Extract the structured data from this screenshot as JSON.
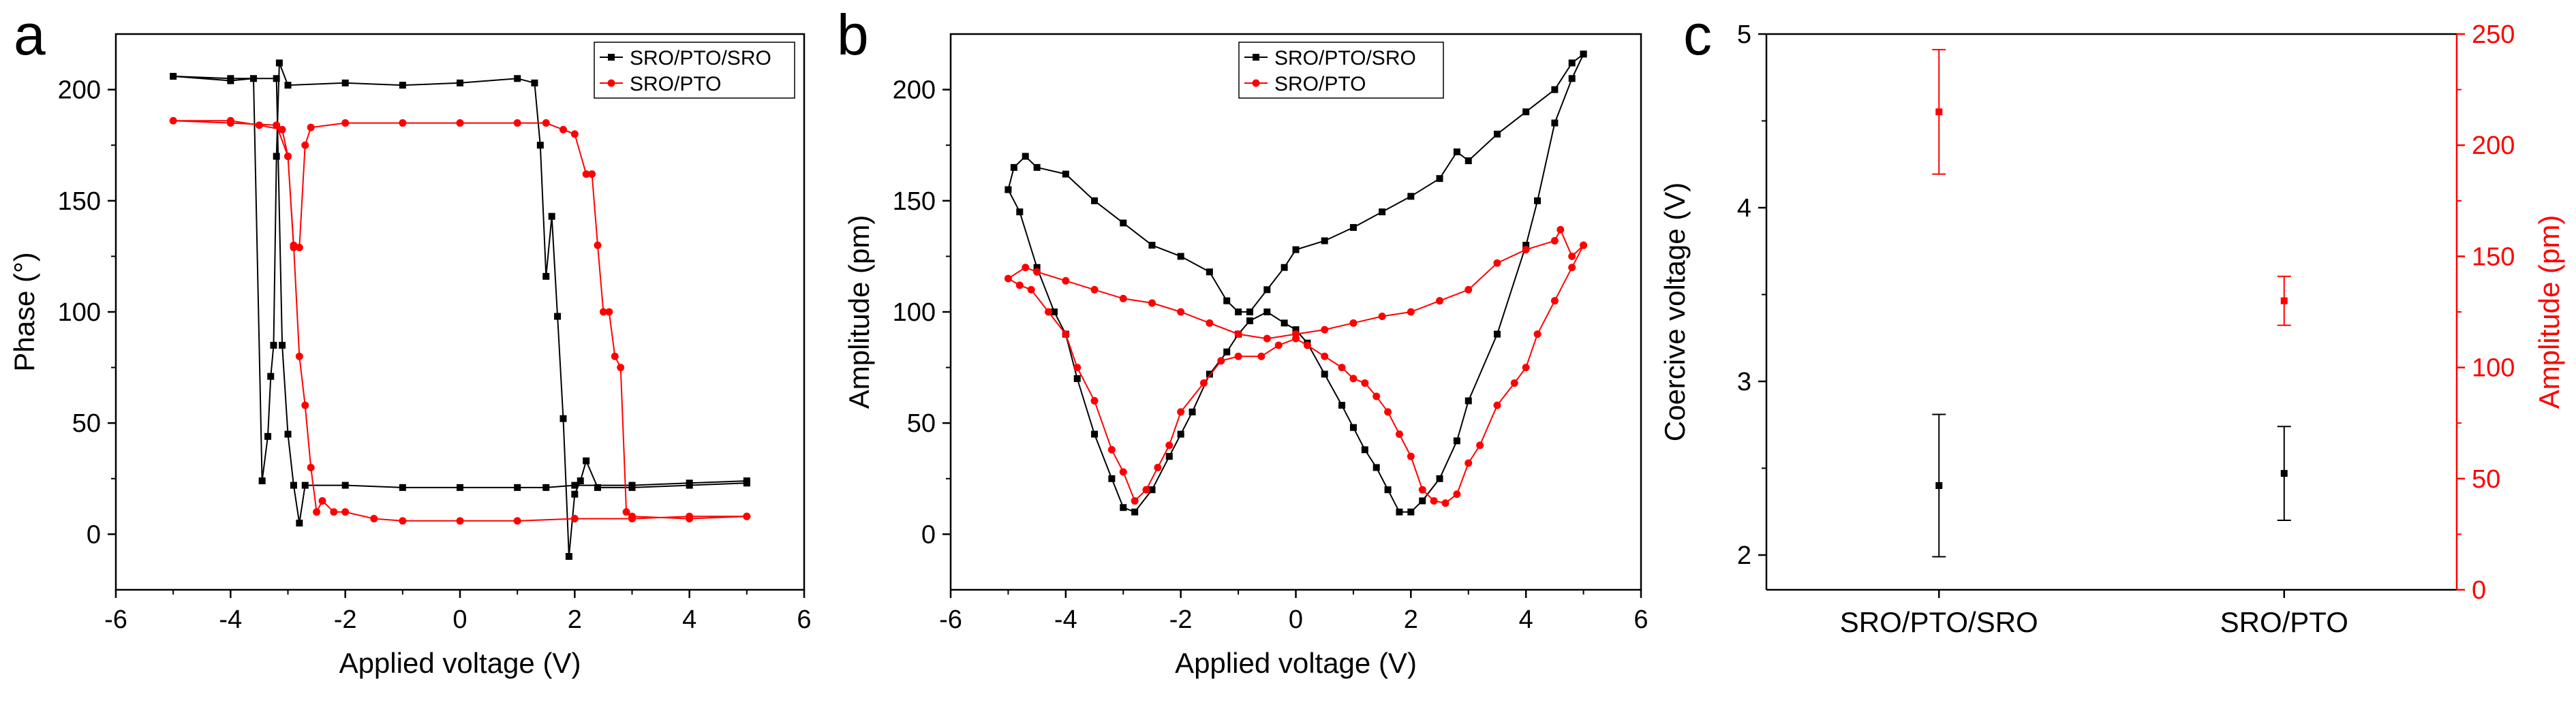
{
  "panel_labels": [
    "a",
    "b",
    "c"
  ],
  "colors": {
    "black_series": "#000000",
    "red_series": "#ff0000"
  },
  "chart_data": [
    {
      "type": "line",
      "panel": "a",
      "title": "",
      "xlabel": "Applied voltage (V)",
      "ylabel": "Phase (°)",
      "xlim": [
        -6,
        6
      ],
      "ylim": [
        -25,
        225
      ],
      "xticks": [
        -6,
        -4,
        -2,
        0,
        2,
        4,
        6
      ],
      "yticks": [
        0,
        50,
        100,
        150,
        200
      ],
      "grid": false,
      "legend": "top-right",
      "series": [
        {
          "name": "SRO/PTO/SRO",
          "color": "#000000",
          "marker": "square",
          "points": [
            [
              5.0,
              23
            ],
            [
              4.0,
              22
            ],
            [
              3.0,
              21
            ],
            [
              2.4,
              21
            ],
            [
              2.2,
              33
            ],
            [
              2.1,
              24
            ],
            [
              2.0,
              18
            ],
            [
              1.9,
              -10
            ],
            [
              1.8,
              52
            ],
            [
              1.7,
              98
            ],
            [
              1.6,
              143
            ],
            [
              1.5,
              116
            ],
            [
              1.4,
              175
            ],
            [
              1.3,
              203
            ],
            [
              1.0,
              205
            ],
            [
              0.0,
              203
            ],
            [
              -1.0,
              202
            ],
            [
              -2.0,
              203
            ],
            [
              -3.0,
              202
            ],
            [
              -3.15,
              212
            ],
            [
              -3.2,
              170
            ],
            [
              -3.25,
              85
            ],
            [
              -3.3,
              71
            ],
            [
              -3.35,
              44
            ],
            [
              -3.45,
              24
            ],
            [
              -3.6,
              205
            ],
            [
              -4.0,
              204
            ],
            [
              -5.0,
              206
            ],
            [
              -4.0,
              205
            ],
            [
              -3.2,
              205
            ],
            [
              -3.1,
              85
            ],
            [
              -3.0,
              45
            ],
            [
              -2.9,
              22
            ],
            [
              -2.8,
              5
            ],
            [
              -2.7,
              22
            ],
            [
              -2.0,
              22
            ],
            [
              -1.0,
              21
            ],
            [
              0.0,
              21
            ],
            [
              1.0,
              21
            ],
            [
              1.5,
              21
            ],
            [
              2.0,
              22
            ],
            [
              3.0,
              22
            ],
            [
              4.0,
              23
            ],
            [
              5.0,
              24
            ]
          ]
        },
        {
          "name": "SRO/PTO",
          "color": "#ff0000",
          "marker": "circle",
          "points": [
            [
              5.0,
              8
            ],
            [
              4.0,
              7
            ],
            [
              3.0,
              8
            ],
            [
              2.9,
              10
            ],
            [
              2.8,
              75
            ],
            [
              2.7,
              80
            ],
            [
              2.6,
              100
            ],
            [
              2.5,
              100
            ],
            [
              2.4,
              130
            ],
            [
              2.3,
              162
            ],
            [
              2.2,
              162
            ],
            [
              2.0,
              180
            ],
            [
              1.8,
              182
            ],
            [
              1.5,
              185
            ],
            [
              1.0,
              185
            ],
            [
              0.0,
              185
            ],
            [
              -1.0,
              185
            ],
            [
              -2.0,
              185
            ],
            [
              -2.6,
              183
            ],
            [
              -2.7,
              175
            ],
            [
              -2.8,
              129
            ],
            [
              -2.9,
              129
            ],
            [
              -3.0,
              170
            ],
            [
              -3.1,
              182
            ],
            [
              -3.5,
              184
            ],
            [
              -4.0,
              186
            ],
            [
              -5.0,
              186
            ],
            [
              -4.0,
              185
            ],
            [
              -3.2,
              184
            ],
            [
              -3.0,
              170
            ],
            [
              -2.9,
              130
            ],
            [
              -2.8,
              80
            ],
            [
              -2.7,
              58
            ],
            [
              -2.6,
              30
            ],
            [
              -2.5,
              10
            ],
            [
              -2.4,
              15
            ],
            [
              -2.2,
              10
            ],
            [
              -2.0,
              10
            ],
            [
              -1.5,
              7
            ],
            [
              -1.0,
              6
            ],
            [
              0.0,
              6
            ],
            [
              1.0,
              6
            ],
            [
              2.0,
              7
            ],
            [
              3.0,
              7
            ],
            [
              4.0,
              8
            ],
            [
              5.0,
              8
            ]
          ]
        }
      ]
    },
    {
      "type": "line",
      "panel": "b",
      "title": "",
      "xlabel": "Applied voltage (V)",
      "ylabel": "Amplitude (pm)",
      "xlim": [
        -6,
        6
      ],
      "ylim": [
        -25,
        225
      ],
      "xticks": [
        -6,
        -4,
        -2,
        0,
        2,
        4,
        6
      ],
      "yticks": [
        0,
        50,
        100,
        150,
        200
      ],
      "grid": false,
      "legend": "top-center",
      "series": [
        {
          "name": "SRO/PTO/SRO",
          "color": "#000000",
          "marker": "square",
          "points": [
            [
              5.0,
              216
            ],
            [
              4.8,
              205
            ],
            [
              4.5,
              185
            ],
            [
              4.2,
              150
            ],
            [
              4.0,
              130
            ],
            [
              3.5,
              90
            ],
            [
              3.0,
              60
            ],
            [
              2.8,
              42
            ],
            [
              2.5,
              25
            ],
            [
              2.2,
              15
            ],
            [
              2.0,
              10
            ],
            [
              1.8,
              10
            ],
            [
              1.6,
              20
            ],
            [
              1.4,
              30
            ],
            [
              1.2,
              38
            ],
            [
              1.0,
              48
            ],
            [
              0.8,
              58
            ],
            [
              0.5,
              72
            ],
            [
              0.2,
              86
            ],
            [
              0.0,
              92
            ],
            [
              -0.2,
              95
            ],
            [
              -0.5,
              100
            ],
            [
              -0.8,
              96
            ],
            [
              -1.0,
              90
            ],
            [
              -1.2,
              82
            ],
            [
              -1.5,
              72
            ],
            [
              -1.8,
              55
            ],
            [
              -2.0,
              45
            ],
            [
              -2.2,
              35
            ],
            [
              -2.5,
              20
            ],
            [
              -2.8,
              10
            ],
            [
              -3.0,
              12
            ],
            [
              -3.2,
              25
            ],
            [
              -3.5,
              45
            ],
            [
              -3.8,
              70
            ],
            [
              -4.0,
              90
            ],
            [
              -4.2,
              100
            ],
            [
              -4.5,
              120
            ],
            [
              -4.8,
              145
            ],
            [
              -5.0,
              155
            ],
            [
              -4.9,
              165
            ],
            [
              -4.7,
              170
            ],
            [
              -4.5,
              165
            ],
            [
              -4.0,
              162
            ],
            [
              -3.5,
              150
            ],
            [
              -3.0,
              140
            ],
            [
              -2.5,
              130
            ],
            [
              -2.0,
              125
            ],
            [
              -1.5,
              118
            ],
            [
              -1.2,
              105
            ],
            [
              -1.0,
              100
            ],
            [
              -0.8,
              100
            ],
            [
              -0.5,
              110
            ],
            [
              -0.2,
              120
            ],
            [
              0.0,
              128
            ],
            [
              0.5,
              132
            ],
            [
              1.0,
              138
            ],
            [
              1.5,
              145
            ],
            [
              2.0,
              152
            ],
            [
              2.5,
              160
            ],
            [
              2.8,
              172
            ],
            [
              3.0,
              168
            ],
            [
              3.5,
              180
            ],
            [
              4.0,
              190
            ],
            [
              4.5,
              200
            ],
            [
              4.8,
              212
            ],
            [
              5.0,
              216
            ]
          ]
        },
        {
          "name": "SRO/PTO",
          "color": "#ff0000",
          "marker": "circle",
          "points": [
            [
              5.0,
              130
            ],
            [
              4.8,
              120
            ],
            [
              4.5,
              105
            ],
            [
              4.2,
              90
            ],
            [
              4.0,
              75
            ],
            [
              3.8,
              68
            ],
            [
              3.5,
              58
            ],
            [
              3.2,
              40
            ],
            [
              3.0,
              32
            ],
            [
              2.8,
              18
            ],
            [
              2.6,
              14
            ],
            [
              2.4,
              15
            ],
            [
              2.2,
              20
            ],
            [
              2.0,
              35
            ],
            [
              1.8,
              45
            ],
            [
              1.6,
              55
            ],
            [
              1.4,
              62
            ],
            [
              1.2,
              68
            ],
            [
              1.0,
              70
            ],
            [
              0.8,
              75
            ],
            [
              0.5,
              80
            ],
            [
              0.2,
              85
            ],
            [
              0.0,
              88
            ],
            [
              -0.3,
              85
            ],
            [
              -0.6,
              80
            ],
            [
              -1.0,
              80
            ],
            [
              -1.3,
              78
            ],
            [
              -1.6,
              68
            ],
            [
              -2.0,
              55
            ],
            [
              -2.2,
              40
            ],
            [
              -2.4,
              30
            ],
            [
              -2.6,
              20
            ],
            [
              -2.8,
              15
            ],
            [
              -3.0,
              28
            ],
            [
              -3.2,
              38
            ],
            [
              -3.5,
              60
            ],
            [
              -3.8,
              75
            ],
            [
              -4.0,
              90
            ],
            [
              -4.3,
              100
            ],
            [
              -4.6,
              110
            ],
            [
              -4.8,
              112
            ],
            [
              -5.0,
              115
            ],
            [
              -4.7,
              120
            ],
            [
              -4.5,
              118
            ],
            [
              -4.0,
              114
            ],
            [
              -3.5,
              110
            ],
            [
              -3.0,
              106
            ],
            [
              -2.5,
              104
            ],
            [
              -2.0,
              100
            ],
            [
              -1.5,
              95
            ],
            [
              -1.0,
              90
            ],
            [
              -0.5,
              88
            ],
            [
              0.0,
              90
            ],
            [
              0.5,
              92
            ],
            [
              1.0,
              95
            ],
            [
              1.5,
              98
            ],
            [
              2.0,
              100
            ],
            [
              2.5,
              105
            ],
            [
              3.0,
              110
            ],
            [
              3.5,
              122
            ],
            [
              4.0,
              128
            ],
            [
              4.5,
              132
            ],
            [
              4.6,
              137
            ],
            [
              4.8,
              125
            ],
            [
              5.0,
              130
            ]
          ]
        }
      ]
    },
    {
      "type": "scatter",
      "panel": "c",
      "title": "",
      "categories": [
        "SRO/PTO/SRO",
        "SRO/PTO"
      ],
      "xlabel": "",
      "ylabel": "Coercive voltage (V)",
      "ylabel_right": "Amplitude (pm)",
      "ylim": [
        1.8,
        5.0
      ],
      "ylim_right": [
        0,
        250
      ],
      "yticks": [
        2,
        3,
        4,
        5
      ],
      "yticks_right": [
        0,
        50,
        100,
        150,
        200,
        250
      ],
      "grid": false,
      "series": [
        {
          "name": "Coercive voltage",
          "axis": "left",
          "color": "#000000",
          "values": [
            2.4,
            2.47
          ],
          "errors": [
            0.41,
            0.27
          ]
        },
        {
          "name": "Amplitude",
          "axis": "right",
          "color": "#ff0000",
          "values": [
            215,
            130
          ],
          "errors": [
            28,
            11
          ]
        }
      ]
    }
  ]
}
